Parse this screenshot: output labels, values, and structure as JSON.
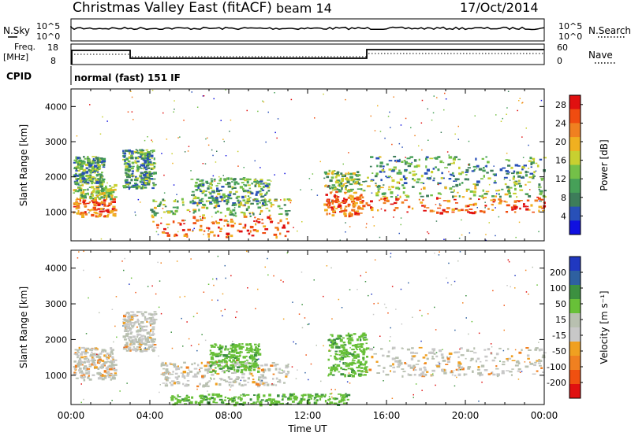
{
  "header": {
    "site": "Christmas Valley East (fitACF)",
    "beam": "beam 14",
    "date": "17/Oct/2014"
  },
  "nsky_panel": {
    "left_label": "N.Sky",
    "right_label": "N.Search",
    "left_ticks": [
      "10^5",
      "10^0"
    ],
    "right_ticks": [
      "10^5",
      "10^0"
    ]
  },
  "freq_panel": {
    "left_label_line1": "Freq.",
    "left_label_line2": "[MHz]",
    "right_label": "Nave",
    "left_ticks": [
      "18",
      "8"
    ],
    "right_ticks": [
      "60",
      "0"
    ]
  },
  "cpid": {
    "label": "CPID",
    "value": "normal (fast) 151 IF"
  },
  "colors": {
    "power_scale": [
      "#1010e0",
      "#2850b8",
      "#3d7d5a",
      "#46a058",
      "#74c048",
      "#c8d030",
      "#f0b020",
      "#f08020",
      "#f04c10",
      "#e01010"
    ],
    "velocity_scale": [
      "#2038c0",
      "#2e60a0",
      "#3c9040",
      "#68c038",
      "#b8c0b0",
      "#c8c8c8",
      "#f0a020",
      "#f08020",
      "#f05010",
      "#e01010"
    ]
  },
  "chart_data": [
    {
      "type": "heatmap",
      "name": "power",
      "xlabel": "Time UT",
      "ylabel": "Slant Range [km]",
      "x_ticks": [
        "00:00",
        "04:00",
        "08:00",
        "12:00",
        "16:00",
        "20:00",
        "00:00"
      ],
      "xlim_hours": [
        0,
        24
      ],
      "y_ticks": [
        1000,
        2000,
        3000,
        4000
      ],
      "ylim_km": [
        180,
        4500
      ],
      "colorbar": {
        "label": "Power [dB]",
        "ticks": [
          "4",
          "8",
          "12",
          "16",
          "20",
          "24",
          "28"
        ],
        "range": [
          0,
          30
        ]
      },
      "regions": [
        {
          "t": [
            0.1,
            2.2
          ],
          "r": [
            900,
            1800
          ],
          "level": "high"
        },
        {
          "t": [
            0.1,
            1.6
          ],
          "r": [
            1800,
            2600
          ],
          "level": "mid"
        },
        {
          "t": [
            2.6,
            4.2
          ],
          "r": [
            1700,
            2800
          ],
          "level": "mid"
        },
        {
          "t": [
            4.0,
            11.0
          ],
          "r": [
            300,
            1400
          ],
          "level": "high"
        },
        {
          "t": [
            6.0,
            10.0
          ],
          "r": [
            1200,
            2000
          ],
          "level": "mid"
        },
        {
          "t": [
            12.8,
            14.8
          ],
          "r": [
            900,
            2200
          ],
          "level": "high"
        },
        {
          "t": [
            14.9,
            24.0
          ],
          "r": [
            1000,
            1800
          ],
          "level": "high"
        },
        {
          "t": [
            14.9,
            24.0
          ],
          "r": [
            1800,
            2600
          ],
          "level": "mid"
        }
      ]
    },
    {
      "type": "heatmap",
      "name": "velocity",
      "xlabel": "Time UT",
      "ylabel": "Slant Range [km]",
      "x_ticks": [
        "00:00",
        "04:00",
        "08:00",
        "12:00",
        "16:00",
        "20:00",
        "00:00"
      ],
      "xlim_hours": [
        0,
        24
      ],
      "y_ticks": [
        1000,
        2000,
        3000,
        4000
      ],
      "ylim_km": [
        180,
        4500
      ],
      "colorbar": {
        "label": "Velocity [m s⁻¹]",
        "ticks": [
          "200",
          "100",
          "50",
          "15",
          "-15",
          "-50",
          "-100",
          "-200"
        ],
        "range": [
          -250,
          250
        ]
      },
      "regions": [
        {
          "t": [
            0.1,
            2.2
          ],
          "r": [
            900,
            1800
          ],
          "level": "low"
        },
        {
          "t": [
            2.6,
            4.2
          ],
          "r": [
            1700,
            2800
          ],
          "level": "low"
        },
        {
          "t": [
            4.5,
            11.0
          ],
          "r": [
            700,
            1400
          ],
          "level": "low"
        },
        {
          "t": [
            7.0,
            9.5
          ],
          "r": [
            1100,
            1900
          ],
          "level": "pos"
        },
        {
          "t": [
            5.0,
            14.0
          ],
          "r": [
            200,
            500
          ],
          "level": "pos"
        },
        {
          "t": [
            13.0,
            15.0
          ],
          "r": [
            1000,
            2200
          ],
          "level": "pos"
        },
        {
          "t": [
            15.0,
            24.0
          ],
          "r": [
            1000,
            1800
          ],
          "level": "low"
        }
      ]
    }
  ]
}
